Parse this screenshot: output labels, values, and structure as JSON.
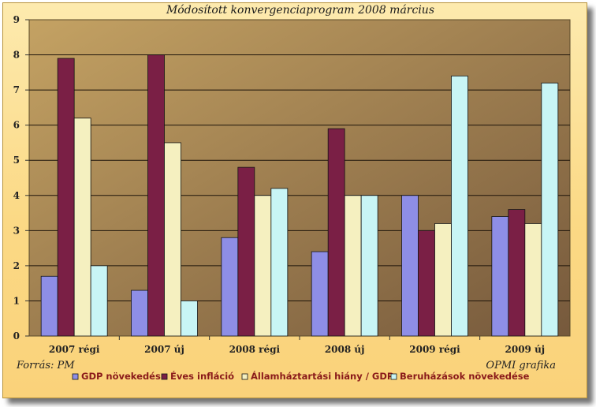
{
  "chart_data": {
    "type": "bar",
    "title": "Módosított konvergenciaprogram 2008 március",
    "categories": [
      "2007 régi",
      "2007 új",
      "2008 régi",
      "2008 új",
      "2009 régi",
      "2009 új"
    ],
    "series": [
      {
        "name": "GDP növekedés",
        "color": "#8e8ee6",
        "values": [
          1.7,
          1.3,
          2.8,
          2.4,
          4.0,
          3.4
        ]
      },
      {
        "name": "Éves infláció",
        "color": "#7a1f45",
        "values": [
          7.9,
          8.0,
          4.8,
          5.9,
          3.0,
          3.6
        ]
      },
      {
        "name": "Államháztartási hiány / GDP",
        "color": "#f5f0c0",
        "values": [
          6.2,
          5.5,
          4.0,
          4.0,
          3.2,
          3.2
        ]
      },
      {
        "name": "Beruházások növekedése",
        "color": "#c8f5f5",
        "values": [
          2.0,
          1.0,
          4.2,
          4.0,
          7.4,
          7.2
        ]
      }
    ],
    "ylim": [
      0,
      9
    ],
    "yticks": [
      "0",
      "1",
      "2",
      "3",
      "4",
      "5",
      "6",
      "7",
      "8",
      "9"
    ],
    "xlabel": "",
    "ylabel": "",
    "grid": true,
    "legend_position": "bottom"
  },
  "annotations": {
    "source": "Forrás: PM",
    "credit": "OPMI grafika"
  },
  "colors": {
    "plot_top": "#bf9d5e",
    "plot_bottom": "#7d6243",
    "frame": "#fbd985"
  }
}
